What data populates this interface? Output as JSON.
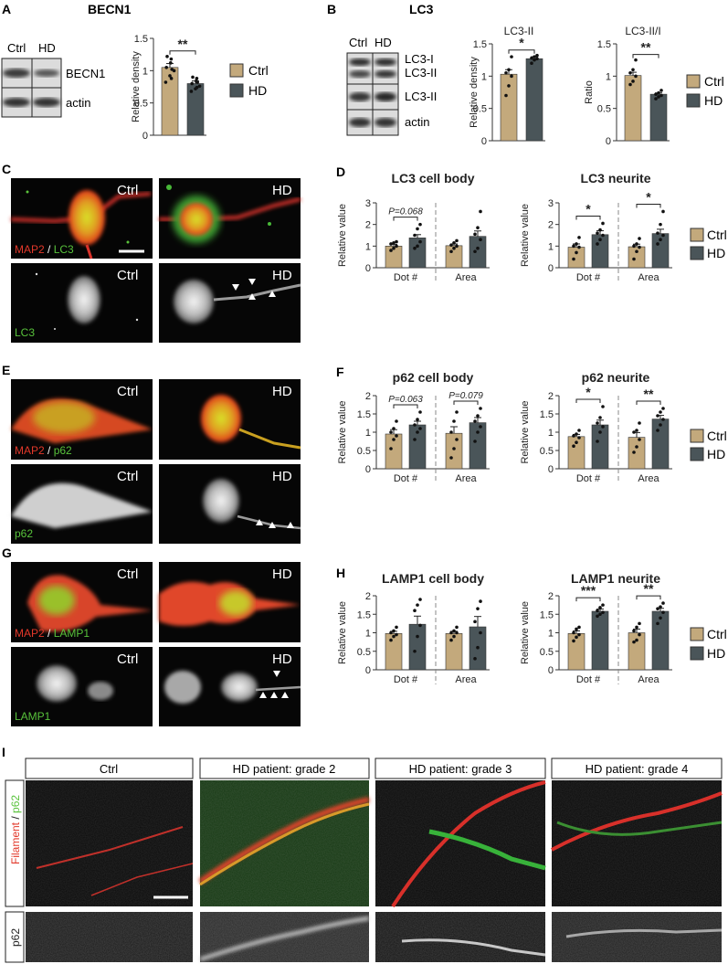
{
  "colors": {
    "ctrl": "#c3a97c",
    "hd": "#4a5559",
    "red": "#e2382a",
    "green": "#58c23b",
    "axis": "#333333"
  },
  "legend": {
    "ctrl": "Ctrl",
    "hd": "HD"
  },
  "panels": {
    "A": {
      "letter": "A",
      "title": "BECN1",
      "blot_ctrl": "Ctrl",
      "blot_hd": "HD",
      "row1": "BECN1",
      "row2": "actin"
    },
    "B": {
      "letter": "B",
      "title": "LC3",
      "blot_ctrl": "Ctrl",
      "blot_hd": "HD",
      "row1a": "LC3-I",
      "row1b": "LC3-II",
      "row2": "LC3-II",
      "row3": "actin"
    },
    "C": {
      "letter": "C",
      "ctrl": "Ctrl",
      "hd": "HD",
      "marker_a": "MAP2",
      "sep": " / ",
      "marker_b": "LC3",
      "gray_label": "LC3"
    },
    "D": {
      "letter": "D"
    },
    "E": {
      "letter": "E",
      "ctrl": "Ctrl",
      "hd": "HD",
      "marker_a": "MAP2",
      "sep": " / ",
      "marker_b": "p62",
      "gray_label": "p62"
    },
    "F": {
      "letter": "F"
    },
    "G": {
      "letter": "G",
      "ctrl": "Ctrl",
      "hd": "HD",
      "marker_a": "MAP2",
      "sep": " / ",
      "marker_b": "LAMP1",
      "gray_label": "LAMP1"
    },
    "H": {
      "letter": "H"
    },
    "I": {
      "letter": "I",
      "headers": [
        "Ctrl",
        "HD patient: grade 2",
        "HD patient: grade 3",
        "HD patient: grade 4"
      ],
      "row1_a": "Filament",
      "row1_sep": " / ",
      "row1_b": "p62",
      "row2": "p62"
    }
  },
  "chart_data": [
    {
      "id": "A",
      "type": "bar",
      "title": "",
      "ylabel": "Relative density",
      "ylim": [
        0,
        1.5
      ],
      "ticks": [
        0.0,
        0.5,
        1.0,
        1.5
      ],
      "categories": [
        "Ctrl",
        "HD"
      ],
      "values": [
        1.05,
        0.8
      ],
      "errors": [
        0.06,
        0.04
      ],
      "points": [
        [
          0.82,
          0.92,
          1.0,
          1.05,
          1.12,
          1.18,
          1.22,
          0.88,
          1.02
        ],
        [
          0.68,
          0.72,
          0.76,
          0.8,
          0.84,
          0.88,
          0.9,
          0.74,
          0.82
        ]
      ],
      "sig": [
        {
          "groups": [
            0,
            1
          ],
          "label": "**"
        }
      ]
    },
    {
      "id": "B1",
      "type": "bar",
      "title": "LC3-II",
      "ylabel": "Relative density",
      "ylim": [
        0,
        1.5
      ],
      "ticks": [
        0,
        0.5,
        1,
        1.5
      ],
      "categories": [
        "Ctrl",
        "HD"
      ],
      "values": [
        1.03,
        1.27
      ],
      "errors": [
        0.07,
        0.03
      ],
      "points": [
        [
          0.7,
          0.85,
          1.0,
          1.05,
          1.1,
          1.3
        ],
        [
          1.2,
          1.25,
          1.27,
          1.28,
          1.3,
          1.32
        ]
      ],
      "sig": [
        {
          "groups": [
            0,
            1
          ],
          "label": "*"
        }
      ]
    },
    {
      "id": "B2",
      "type": "bar",
      "title": "LC3-II/I",
      "ylabel": "Ratio",
      "ylim": [
        0,
        1.5
      ],
      "ticks": [
        0,
        0.5,
        1,
        1.5
      ],
      "categories": [
        "Ctrl",
        "HD"
      ],
      "values": [
        1.01,
        0.72
      ],
      "errors": [
        0.05,
        0.02
      ],
      "points": [
        [
          0.87,
          0.92,
          1.0,
          1.05,
          1.1,
          1.25
        ],
        [
          0.65,
          0.68,
          0.7,
          0.72,
          0.74,
          0.78
        ]
      ],
      "sig": [
        {
          "groups": [
            0,
            1
          ],
          "label": "**"
        }
      ]
    },
    {
      "id": "D1",
      "type": "bar",
      "title": "LC3 cell body",
      "ylabel": "Relative value",
      "ylim": [
        0,
        3
      ],
      "ticks": [
        0,
        1,
        2,
        3
      ],
      "groups": [
        "Dot #",
        "Area"
      ],
      "values": [
        [
          1.0,
          1.38
        ],
        [
          1.02,
          1.45
        ]
      ],
      "errors": [
        [
          0.08,
          0.15
        ],
        [
          0.08,
          0.25
        ]
      ],
      "points": [
        [
          [
            0.8,
            0.9,
            1.0,
            1.1,
            1.15,
            1.2
          ],
          [
            0.9,
            1.0,
            1.2,
            1.5,
            1.8,
            2.0
          ]
        ],
        [
          [
            0.75,
            0.9,
            1.0,
            1.05,
            1.15,
            1.25
          ],
          [
            0.75,
            0.9,
            1.3,
            1.55,
            1.85,
            2.6
          ]
        ]
      ],
      "sig": [
        {
          "group": 0,
          "label": "P=0.068"
        }
      ]
    },
    {
      "id": "D2",
      "type": "bar",
      "title": "LC3 neurite",
      "ylabel": "Relative value",
      "ylim": [
        0,
        3
      ],
      "ticks": [
        0,
        1,
        2,
        3
      ],
      "groups": [
        "Dot #",
        "Area"
      ],
      "values": [
        [
          0.95,
          1.53
        ],
        [
          0.97,
          1.58
        ]
      ],
      "errors": [
        [
          0.15,
          0.18
        ],
        [
          0.12,
          0.2
        ]
      ],
      "points": [
        [
          [
            0.4,
            0.7,
            0.95,
            1.0,
            1.1,
            1.4
          ],
          [
            1.1,
            1.3,
            1.5,
            1.6,
            1.75,
            2.05
          ]
        ],
        [
          [
            0.4,
            0.75,
            0.95,
            1.0,
            1.1,
            1.35
          ],
          [
            1.1,
            1.3,
            1.5,
            1.6,
            2.0,
            2.6
          ]
        ]
      ],
      "sig": [
        {
          "group": 0,
          "label": "*"
        },
        {
          "group": 1,
          "label": "*"
        }
      ]
    },
    {
      "id": "F1",
      "type": "bar",
      "title": "p62 cell body",
      "ylabel": "Relative value",
      "ylim": [
        0,
        2.0
      ],
      "ticks": [
        0.0,
        0.5,
        1.0,
        1.5,
        2.0
      ],
      "groups": [
        "Dot #",
        "Area"
      ],
      "values": [
        [
          0.95,
          1.2
        ],
        [
          0.97,
          1.26
        ]
      ],
      "errors": [
        [
          0.12,
          0.1
        ],
        [
          0.18,
          0.14
        ]
      ],
      "points": [
        [
          [
            0.55,
            0.8,
            0.9,
            1.0,
            1.1,
            1.3
          ],
          [
            0.8,
            1.0,
            1.1,
            1.2,
            1.35,
            1.55
          ]
        ],
        [
          [
            0.3,
            0.55,
            0.8,
            1.0,
            1.3,
            1.55
          ],
          [
            0.75,
            1.0,
            1.15,
            1.3,
            1.45,
            1.65
          ]
        ]
      ],
      "sig": [
        {
          "group": 0,
          "label": "P=0.063"
        },
        {
          "group": 1,
          "label": "P=0.079"
        }
      ]
    },
    {
      "id": "F2",
      "type": "bar",
      "title": "p62 neurite",
      "ylabel": "Relative value",
      "ylim": [
        0,
        2.0
      ],
      "ticks": [
        0.0,
        0.5,
        1.0,
        1.5,
        2.0
      ],
      "groups": [
        "Dot #",
        "Area"
      ],
      "values": [
        [
          0.88,
          1.2
        ],
        [
          0.86,
          1.36
        ]
      ],
      "errors": [
        [
          0.06,
          0.13
        ],
        [
          0.13,
          0.1
        ]
      ],
      "points": [
        [
          [
            0.62,
            0.72,
            0.85,
            0.9,
            0.95,
            1.05
          ],
          [
            0.75,
            1.0,
            1.15,
            1.25,
            1.4,
            1.7
          ]
        ],
        [
          [
            0.45,
            0.6,
            0.8,
            1.0,
            1.05,
            1.25
          ],
          [
            1.05,
            1.2,
            1.35,
            1.45,
            1.55,
            1.65
          ]
        ]
      ],
      "sig": [
        {
          "group": 0,
          "label": "*"
        },
        {
          "group": 1,
          "label": "**"
        }
      ]
    },
    {
      "id": "H1",
      "type": "bar",
      "title": "LAMP1 cell body",
      "ylabel": "Relative value",
      "ylim": [
        0,
        2.0
      ],
      "ticks": [
        0.0,
        0.5,
        1.0,
        1.5,
        2.0
      ],
      "groups": [
        "Dot #",
        "Area"
      ],
      "values": [
        [
          0.98,
          1.23
        ],
        [
          0.98,
          1.16
        ]
      ],
      "errors": [
        [
          0.06,
          0.22
        ],
        [
          0.06,
          0.28
        ]
      ],
      "points": [
        [
          [
            0.8,
            0.9,
            0.95,
            1.0,
            1.05,
            1.15
          ],
          [
            0.5,
            0.9,
            1.2,
            1.6,
            1.75,
            1.9
          ]
        ],
        [
          [
            0.8,
            0.9,
            1.0,
            1.0,
            1.05,
            1.15
          ],
          [
            0.3,
            0.6,
            1.0,
            1.3,
            1.65,
            1.85
          ]
        ]
      ],
      "sig": []
    },
    {
      "id": "H2",
      "type": "bar",
      "title": "LAMP1 neurite",
      "ylabel": "Relative value",
      "ylim": [
        0,
        2.0
      ],
      "ticks": [
        0.0,
        0.5,
        1.0,
        1.5,
        2.0
      ],
      "groups": [
        "Dot #",
        "Area"
      ],
      "values": [
        [
          0.98,
          1.58
        ],
        [
          1.0,
          1.58
        ]
      ],
      "errors": [
        [
          0.07,
          0.06
        ],
        [
          0.1,
          0.08
        ]
      ],
      "points": [
        [
          [
            0.78,
            0.88,
            0.95,
            1.0,
            1.1,
            1.15
          ],
          [
            1.45,
            1.5,
            1.55,
            1.6,
            1.68,
            1.75
          ]
        ],
        [
          [
            0.75,
            0.8,
            0.95,
            1.05,
            1.15,
            1.25
          ],
          [
            1.25,
            1.4,
            1.55,
            1.65,
            1.7,
            1.8
          ]
        ]
      ],
      "sig": [
        {
          "group": 0,
          "label": "***"
        },
        {
          "group": 1,
          "label": "**"
        }
      ]
    }
  ]
}
